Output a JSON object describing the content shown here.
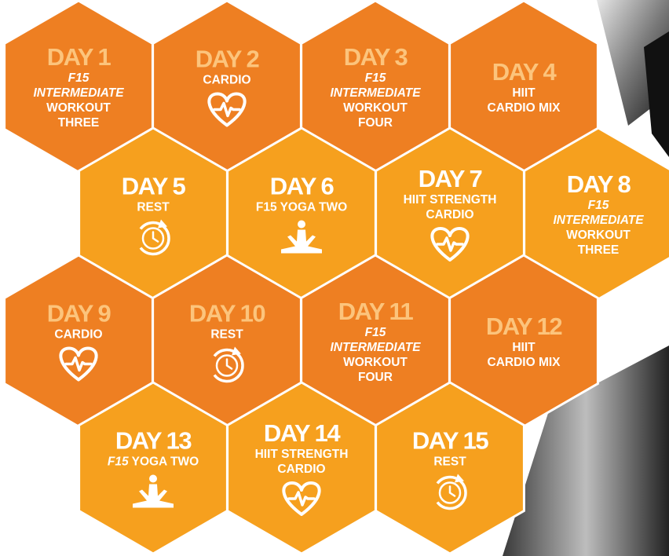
{
  "days": [
    {
      "title": "DAY 1",
      "color": "#ee7f22",
      "title_color": "#fcc47c",
      "lines": [
        [
          {
            "text": "F15",
            "italic": true
          }
        ],
        [
          {
            "text": "INTERMEDIATE",
            "italic": true
          }
        ],
        [
          {
            "text": "WORKOUT"
          }
        ],
        [
          {
            "text": "THREE"
          }
        ]
      ]
    },
    {
      "title": "DAY 2",
      "color": "#ee7f22",
      "title_color": "#fcc47c",
      "lines": [
        [
          {
            "text": "CARDIO"
          }
        ]
      ],
      "icon": "heart"
    },
    {
      "title": "DAY 3",
      "color": "#ee7f22",
      "title_color": "#fcc47c",
      "lines": [
        [
          {
            "text": "F15",
            "italic": true
          }
        ],
        [
          {
            "text": "INTERMEDIATE",
            "italic": true
          }
        ],
        [
          {
            "text": "WORKOUT"
          }
        ],
        [
          {
            "text": "FOUR"
          }
        ]
      ]
    },
    {
      "title": "DAY 4",
      "color": "#ee7f22",
      "title_color": "#fcc47c",
      "lines": [
        [
          {
            "text": "HIIT"
          }
        ],
        [
          {
            "text": "CARDIO MIX"
          }
        ]
      ]
    },
    {
      "title": "DAY 5",
      "color": "#f6a01e",
      "title_color": "#ffffff",
      "lines": [
        [
          {
            "text": "REST"
          }
        ]
      ],
      "icon": "stopwatch"
    },
    {
      "title": "DAY 6",
      "color": "#f6a01e",
      "title_color": "#ffffff",
      "lines": [
        [
          {
            "text": "F15 YOGA TWO"
          }
        ]
      ],
      "icon": "yoga"
    },
    {
      "title": "DAY 7",
      "color": "#f6a01e",
      "title_color": "#ffffff",
      "lines": [
        [
          {
            "text": "HIIT STRENGTH"
          }
        ],
        [
          {
            "text": "CARDIO"
          }
        ]
      ],
      "icon": "heart"
    },
    {
      "title": "DAY 8",
      "color": "#f6a01e",
      "title_color": "#ffffff",
      "lines": [
        [
          {
            "text": "F15",
            "italic": true
          }
        ],
        [
          {
            "text": "INTERMEDIATE",
            "italic": true
          }
        ],
        [
          {
            "text": "WORKOUT"
          }
        ],
        [
          {
            "text": "THREE"
          }
        ]
      ]
    },
    {
      "title": "DAY 9",
      "color": "#ee7f22",
      "title_color": "#fcc47c",
      "lines": [
        [
          {
            "text": "CARDIO"
          }
        ]
      ],
      "icon": "heart"
    },
    {
      "title": "DAY 10",
      "color": "#ee7f22",
      "title_color": "#fcc47c",
      "lines": [
        [
          {
            "text": "REST"
          }
        ]
      ],
      "icon": "stopwatch"
    },
    {
      "title": "DAY 11",
      "color": "#ee7f22",
      "title_color": "#fcc47c",
      "lines": [
        [
          {
            "text": "F15",
            "italic": true
          }
        ],
        [
          {
            "text": "INTERMEDIATE",
            "italic": true
          }
        ],
        [
          {
            "text": "WORKOUT"
          }
        ],
        [
          {
            "text": "FOUR"
          }
        ]
      ]
    },
    {
      "title": "DAY 12",
      "color": "#ee7f22",
      "title_color": "#fcc47c",
      "lines": [
        [
          {
            "text": "HIIT"
          }
        ],
        [
          {
            "text": "CARDIO MIX"
          }
        ]
      ]
    },
    {
      "title": "DAY 13",
      "color": "#f6a01e",
      "title_color": "#ffffff",
      "lines": [
        [
          {
            "text": "F15",
            "italic": true
          },
          {
            "text": " YOGA TWO"
          }
        ]
      ],
      "icon": "yoga"
    },
    {
      "title": "DAY 14",
      "color": "#f6a01e",
      "title_color": "#ffffff",
      "lines": [
        [
          {
            "text": "HIIT STRENGTH"
          }
        ],
        [
          {
            "text": "CARDIO"
          }
        ]
      ],
      "icon": "heart"
    },
    {
      "title": "DAY 15",
      "color": "#f6a01e",
      "title_color": "#ffffff",
      "lines": [
        [
          {
            "text": "REST"
          }
        ]
      ],
      "icon": "stopwatch"
    }
  ]
}
